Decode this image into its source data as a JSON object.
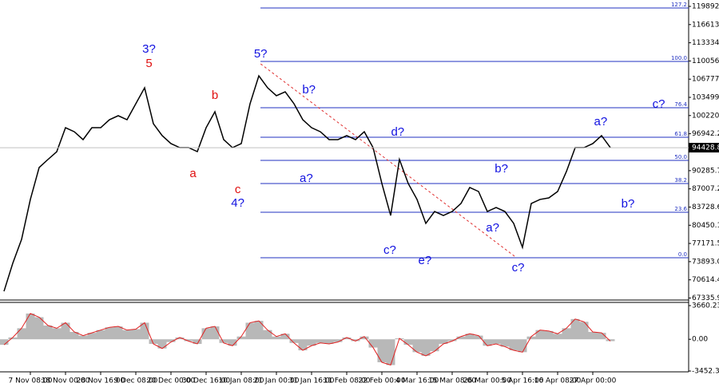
{
  "chart_data": [
    {
      "type": "line",
      "series": [
        {
          "color": "#000000",
          "values": [
            68550,
            73600,
            77900,
            85100,
            90850,
            92300,
            93700,
            98030,
            97300,
            95880,
            98030,
            98030,
            99470,
            100190,
            99470,
            102350,
            105220,
            98750,
            96600,
            95160,
            94440,
            94440,
            93720,
            98030,
            100910,
            95880,
            94440,
            95160,
            102350,
            107380,
            105220,
            103790,
            104500,
            102350,
            99470,
            98030,
            97300,
            95880,
            95880,
            96600,
            95880,
            97300,
            94440,
            87970,
            82210,
            92300,
            87970,
            85100,
            80780,
            82930,
            82210,
            82930,
            84370,
            87250,
            86530,
            82930,
            83650,
            82930,
            80780,
            76460,
            84370,
            85100,
            85380,
            86530,
            90130,
            94440,
            94440,
            95160,
            96600,
            94440
          ]
        }
      ],
      "ylim": [
        66974,
        121042
      ],
      "yticks": [
        119892.05,
        116613.51,
        113334.96,
        110056.41,
        106777.86,
        103499.31,
        100220.76,
        96942.21,
        90285.76,
        87007.21,
        83728.66,
        80450.11,
        77171.56,
        73893.01,
        70614.46,
        67335.91
      ],
      "last_price": 94428.84,
      "levels": [
        {
          "label": "127.2",
          "value": 119600
        },
        {
          "label": "100.0",
          "value": 109970
        },
        {
          "label": "76.4",
          "value": 101630
        },
        {
          "label": "61.8",
          "value": 96310
        },
        {
          "label": "50.0",
          "value": 92140
        },
        {
          "label": "38.2",
          "value": 87970
        },
        {
          "label": "23.6",
          "value": 82790
        },
        {
          "label": "0.0",
          "value": 74590
        }
      ],
      "level_color": "#2030c0",
      "trend_line": {
        "x": [
          29.2,
          58.2
        ],
        "y": [
          109540,
          74740
        ],
        "color": "#e03030"
      },
      "annotations": [
        {
          "text": "3?",
          "x": 16.5,
          "y": 112130,
          "color": "#1010e0"
        },
        {
          "text": "5",
          "x": 16.5,
          "y": 109540,
          "color": "#e01010"
        },
        {
          "text": "b",
          "x": 24,
          "y": 103790,
          "color": "#e01010"
        },
        {
          "text": "a",
          "x": 21.5,
          "y": 89700,
          "color": "#e01010"
        },
        {
          "text": "c",
          "x": 26.6,
          "y": 86820,
          "color": "#e01010"
        },
        {
          "text": "4?",
          "x": 26.6,
          "y": 84380,
          "color": "#1010e0"
        },
        {
          "text": "5?",
          "x": 29.2,
          "y": 111260,
          "color": "#1010e0"
        },
        {
          "text": "b?",
          "x": 34.7,
          "y": 104790,
          "color": "#1010e0"
        },
        {
          "text": "a?",
          "x": 34.4,
          "y": 88830,
          "color": "#1010e0"
        },
        {
          "text": "d?",
          "x": 44.8,
          "y": 97170,
          "color": "#1010e0"
        },
        {
          "text": "c?",
          "x": 43.9,
          "y": 75890,
          "color": "#1010e0"
        },
        {
          "text": "e?",
          "x": 47.9,
          "y": 74020,
          "color": "#1010e0"
        },
        {
          "text": "b?",
          "x": 56.6,
          "y": 90560,
          "color": "#1010e0"
        },
        {
          "text": "a?",
          "x": 55.6,
          "y": 79910,
          "color": "#1010e0"
        },
        {
          "text": "c?",
          "x": 58.5,
          "y": 72730,
          "color": "#1010e0"
        },
        {
          "text": "a?",
          "x": 67.9,
          "y": 99040,
          "color": "#1010e0"
        },
        {
          "text": "c?",
          "x": 74.5,
          "y": 102200,
          "color": "#1010e0"
        },
        {
          "text": "b?",
          "x": 71,
          "y": 84240,
          "color": "#1010e0"
        }
      ]
    },
    {
      "type": "bar",
      "categories": [
        null,
        null,
        null,
        "7 Nov 08:00",
        null,
        null,
        null,
        "18 Nov 00:00",
        null,
        null,
        null,
        "28 Nov 16:00",
        null,
        null,
        null,
        "9 Dec 08:00",
        null,
        null,
        null,
        "20 Dec 00:00",
        null,
        null,
        null,
        "30 Dec 16:00",
        null,
        null,
        null,
        "10 Jan 08:00",
        null,
        null,
        null,
        "21 Jan 00:00",
        null,
        null,
        null,
        "31 Jan 16:00",
        null,
        null,
        null,
        "11 Feb 08:00",
        null,
        null,
        null,
        "22 Feb 00:00",
        null,
        null,
        null,
        "4 Mar 16:00",
        null,
        null,
        null,
        "15 Mar 08:00",
        null,
        null,
        null,
        "26 Mar 00:00",
        null,
        null,
        null,
        "5 Apr 16:00",
        null,
        null,
        null,
        "16 Apr 08:00",
        null,
        null,
        null,
        "27 Apr 00:00",
        null,
        null
      ],
      "values": [
        -600,
        200,
        1200,
        2800,
        2400,
        1500,
        1200,
        1800,
        800,
        400,
        700,
        1000,
        1300,
        1400,
        1000,
        1100,
        1800,
        -500,
        -1000,
        -300,
        200,
        -200,
        -500,
        1200,
        1400,
        -400,
        -700,
        300,
        1800,
        2000,
        1000,
        300,
        600,
        -400,
        -1200,
        -700,
        -400,
        -500,
        -300,
        200,
        -200,
        300,
        -900,
        -2500,
        -2800,
        100,
        -600,
        -1400,
        -1800,
        -1300,
        -500,
        -200,
        300,
        600,
        400,
        -700,
        -500,
        -800,
        -1200,
        -1400,
        300,
        1000,
        900,
        600,
        1200,
        2200,
        1900,
        800,
        700,
        -200
      ],
      "color": "#b8b8b8",
      "line_color": "#e02020",
      "ylim": [
        -3539,
        4007
      ],
      "yticks": [
        3660.235,
        {
          "value": 0,
          "label": "0.00"
        },
        -3452.35
      ]
    }
  ]
}
